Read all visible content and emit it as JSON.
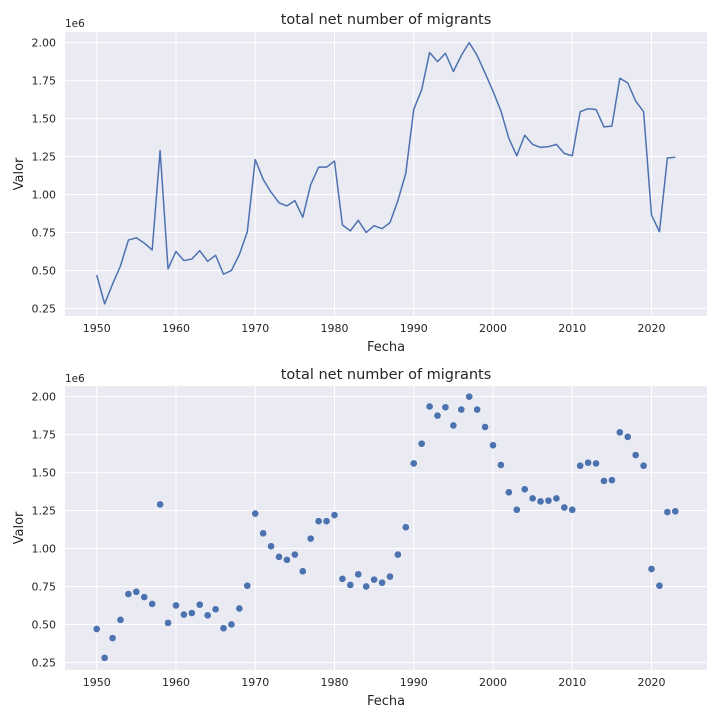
{
  "chart_data": [
    {
      "type": "line",
      "title": "total net number of migrants",
      "xlabel": "Fecha",
      "ylabel": "Valor",
      "y_multiplier": "1e6",
      "xlim": [
        1946,
        2027
      ],
      "ylim": [
        0.2,
        2.07
      ],
      "xticks": [
        1950,
        1960,
        1970,
        1980,
        1990,
        2000,
        2010,
        2020
      ],
      "yticks": [
        0.25,
        0.5,
        0.75,
        1.0,
        1.25,
        1.5,
        1.75,
        2.0
      ],
      "ytick_labels": [
        "0.25",
        "0.50",
        "0.75",
        "1.00",
        "1.25",
        "1.50",
        "1.75",
        "2.00"
      ],
      "grid": true,
      "color": "#4c72b0",
      "x": [
        1950,
        1951,
        1952,
        1953,
        1954,
        1955,
        1956,
        1957,
        1958,
        1959,
        1960,
        1961,
        1962,
        1963,
        1964,
        1965,
        1966,
        1967,
        1968,
        1969,
        1970,
        1971,
        1972,
        1973,
        1974,
        1975,
        1976,
        1977,
        1978,
        1979,
        1980,
        1981,
        1982,
        1983,
        1984,
        1985,
        1986,
        1987,
        1988,
        1989,
        1990,
        1991,
        1992,
        1993,
        1994,
        1995,
        1996,
        1997,
        1998,
        1999,
        2000,
        2001,
        2002,
        2003,
        2004,
        2005,
        2006,
        2007,
        2008,
        2009,
        2010,
        2011,
        2012,
        2013,
        2014,
        2015,
        2016,
        2017,
        2018,
        2019,
        2020,
        2021,
        2022,
        2023
      ],
      "y": [
        0.47,
        0.28,
        0.41,
        0.53,
        0.7,
        0.715,
        0.68,
        0.635,
        1.29,
        0.51,
        0.625,
        0.565,
        0.575,
        0.63,
        0.56,
        0.6,
        0.475,
        0.5,
        0.605,
        0.755,
        1.23,
        1.1,
        1.015,
        0.945,
        0.925,
        0.96,
        0.85,
        1.065,
        1.18,
        1.18,
        1.22,
        0.8,
        0.76,
        0.83,
        0.75,
        0.795,
        0.775,
        0.815,
        0.96,
        1.14,
        1.56,
        1.69,
        1.935,
        1.875,
        1.93,
        1.81,
        1.915,
        2.0,
        1.915,
        1.8,
        1.68,
        1.55,
        1.37,
        1.255,
        1.39,
        1.33,
        1.31,
        1.315,
        1.33,
        1.27,
        1.255,
        1.545,
        1.565,
        1.56,
        1.445,
        1.45,
        1.765,
        1.735,
        1.615,
        1.545,
        0.865,
        0.755,
        1.24,
        1.245
      ]
    },
    {
      "type": "scatter",
      "title": "total net number of migrants",
      "xlabel": "Fecha",
      "ylabel": "Valor",
      "y_multiplier": "1e6",
      "xlim": [
        1946,
        2027
      ],
      "ylim": [
        0.2,
        2.07
      ],
      "xticks": [
        1950,
        1960,
        1970,
        1980,
        1990,
        2000,
        2010,
        2020
      ],
      "yticks": [
        0.25,
        0.5,
        0.75,
        1.0,
        1.25,
        1.5,
        1.75,
        2.0
      ],
      "ytick_labels": [
        "0.25",
        "0.50",
        "0.75",
        "1.00",
        "1.25",
        "1.50",
        "1.75",
        "2.00"
      ],
      "grid": true,
      "color": "#4c72b0",
      "x": [
        1950,
        1951,
        1952,
        1953,
        1954,
        1955,
        1956,
        1957,
        1958,
        1959,
        1960,
        1961,
        1962,
        1963,
        1964,
        1965,
        1966,
        1967,
        1968,
        1969,
        1970,
        1971,
        1972,
        1973,
        1974,
        1975,
        1976,
        1977,
        1978,
        1979,
        1980,
        1981,
        1982,
        1983,
        1984,
        1985,
        1986,
        1987,
        1988,
        1989,
        1990,
        1991,
        1992,
        1993,
        1994,
        1995,
        1996,
        1997,
        1998,
        1999,
        2000,
        2001,
        2002,
        2003,
        2004,
        2005,
        2006,
        2007,
        2008,
        2009,
        2010,
        2011,
        2012,
        2013,
        2014,
        2015,
        2016,
        2017,
        2018,
        2019,
        2020,
        2021,
        2022,
        2023
      ],
      "y": [
        0.47,
        0.28,
        0.41,
        0.53,
        0.7,
        0.715,
        0.68,
        0.635,
        1.29,
        0.51,
        0.625,
        0.565,
        0.575,
        0.63,
        0.56,
        0.6,
        0.475,
        0.5,
        0.605,
        0.755,
        1.23,
        1.1,
        1.015,
        0.945,
        0.925,
        0.96,
        0.85,
        1.065,
        1.18,
        1.18,
        1.22,
        0.8,
        0.76,
        0.83,
        0.75,
        0.795,
        0.775,
        0.815,
        0.96,
        1.14,
        1.56,
        1.69,
        1.935,
        1.875,
        1.93,
        1.81,
        1.915,
        2.0,
        1.915,
        1.8,
        1.68,
        1.55,
        1.37,
        1.255,
        1.39,
        1.33,
        1.31,
        1.315,
        1.33,
        1.27,
        1.255,
        1.545,
        1.565,
        1.56,
        1.445,
        1.45,
        1.765,
        1.735,
        1.615,
        1.545,
        0.865,
        0.755,
        1.24,
        1.245
      ]
    }
  ]
}
